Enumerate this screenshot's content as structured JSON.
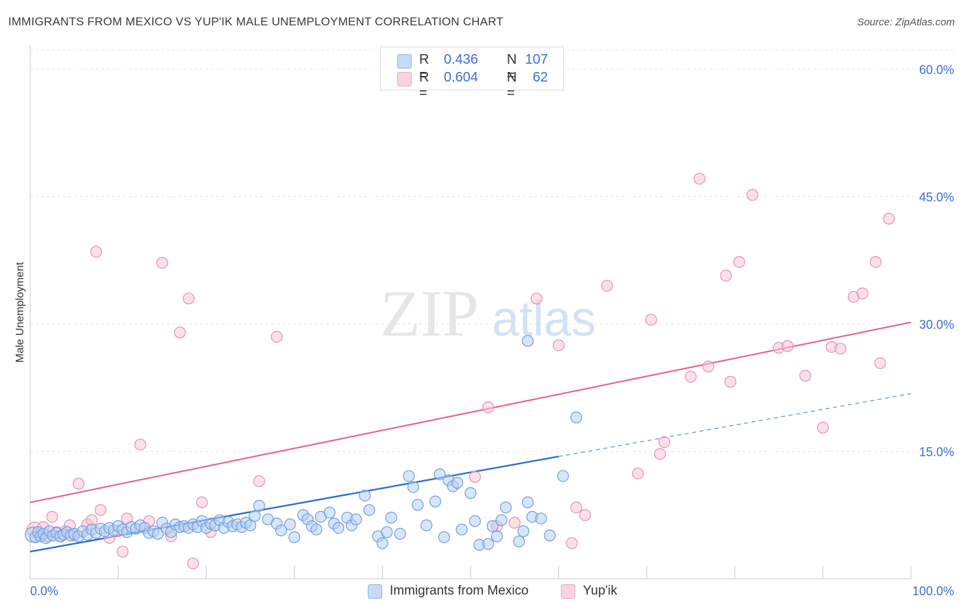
{
  "header": {
    "title": "IMMIGRANTS FROM MEXICO VS YUP'IK MALE UNEMPLOYMENT CORRELATION CHART",
    "source": "Source: ZipAtlas.com"
  },
  "watermark": {
    "text_zip": "ZIP",
    "text_atlas": "atlas"
  },
  "legend_top": {
    "rows": [
      {
        "r_label": "R =",
        "r_value": "0.436",
        "n_label": "N =",
        "n_value": "107",
        "color": "#a9c7f0"
      },
      {
        "r_label": "R =",
        "r_value": "0.604",
        "n_label": "N =",
        "n_value": "62",
        "color": "#f6b9cb"
      }
    ]
  },
  "legend_bottom": {
    "items": [
      {
        "label": "Immigrants from Mexico",
        "color": "#a9c7f0"
      },
      {
        "label": "Yup'ik",
        "color": "#f6b9cb"
      }
    ]
  },
  "chart_data": {
    "type": "scatter",
    "title": "IMMIGRANTS FROM MEXICO VS YUP'IK MALE UNEMPLOYMENT CORRELATION CHART",
    "xlabel": "",
    "ylabel": "Male Unemployment",
    "xlim": [
      0,
      100
    ],
    "ylim": [
      0,
      62.5
    ],
    "x_tick_labels": [
      {
        "value": 0,
        "label": "0.0%"
      },
      {
        "value": 100,
        "label": "100.0%"
      }
    ],
    "y_tick_labels": [
      {
        "value": 15,
        "label": "15.0%"
      },
      {
        "value": 30,
        "label": "30.0%"
      },
      {
        "value": 45,
        "label": "45.0%"
      },
      {
        "value": 60,
        "label": "60.0%"
      }
    ],
    "grid": true,
    "legend_position": "bottom",
    "series": [
      {
        "name": "Immigrants from Mexico",
        "color": "#4a85d6",
        "fill": "#a9c7f0",
        "R": 0.436,
        "N": 107,
        "trendline": {
          "x0": 0,
          "y0": 3.2,
          "x1": 60,
          "y1": 14.4,
          "dashed_to_x": 100,
          "dashed_to_y": 21.8
        },
        "points": [
          [
            0.3,
            5.2
          ],
          [
            0.6,
            4.9
          ],
          [
            0.9,
            5.5
          ],
          [
            1.2,
            5.0
          ],
          [
            1.5,
            5.3
          ],
          [
            1.8,
            4.8
          ],
          [
            2.2,
            5.6
          ],
          [
            2.6,
            5.1
          ],
          [
            3.0,
            5.4
          ],
          [
            3.4,
            5.0
          ],
          [
            3.8,
            5.2
          ],
          [
            4.2,
            5.5
          ],
          [
            4.6,
            5.1
          ],
          [
            5.0,
            5.3
          ],
          [
            5.5,
            5.0
          ],
          [
            6.0,
            5.6
          ],
          [
            6.5,
            5.2
          ],
          [
            7.0,
            5.8
          ],
          [
            7.5,
            5.4
          ],
          [
            8.0,
            5.9
          ],
          [
            8.5,
            5.6
          ],
          [
            9.0,
            6.0
          ],
          [
            9.5,
            5.7
          ],
          [
            10.0,
            6.2
          ],
          [
            10.5,
            5.8
          ],
          [
            11.0,
            5.5
          ],
          [
            11.5,
            6.1
          ],
          [
            12.0,
            5.9
          ],
          [
            12.5,
            6.3
          ],
          [
            13.0,
            6.0
          ],
          [
            13.5,
            5.4
          ],
          [
            14.0,
            5.6
          ],
          [
            14.5,
            5.3
          ],
          [
            15.0,
            6.6
          ],
          [
            15.5,
            5.9
          ],
          [
            16.0,
            5.5
          ],
          [
            16.5,
            6.4
          ],
          [
            17.0,
            6.1
          ],
          [
            17.5,
            6.2
          ],
          [
            18.0,
            6.0
          ],
          [
            18.5,
            6.4
          ],
          [
            19.0,
            6.1
          ],
          [
            19.5,
            6.8
          ],
          [
            20.0,
            6.0
          ],
          [
            20.5,
            6.5
          ],
          [
            21.0,
            6.3
          ],
          [
            21.5,
            6.9
          ],
          [
            22.0,
            6.0
          ],
          [
            22.5,
            6.7
          ],
          [
            23.0,
            6.2
          ],
          [
            23.5,
            6.4
          ],
          [
            24.0,
            6.1
          ],
          [
            24.5,
            6.6
          ],
          [
            25.0,
            6.3
          ],
          [
            25.5,
            7.4
          ],
          [
            26.0,
            8.6
          ],
          [
            27.0,
            7.0
          ],
          [
            28.0,
            6.5
          ],
          [
            28.5,
            5.7
          ],
          [
            29.5,
            6.4
          ],
          [
            30.0,
            4.9
          ],
          [
            31.0,
            7.5
          ],
          [
            31.5,
            7.0
          ],
          [
            32.0,
            6.2
          ],
          [
            32.5,
            5.8
          ],
          [
            33.0,
            7.3
          ],
          [
            34.0,
            7.8
          ],
          [
            34.5,
            6.5
          ],
          [
            35.0,
            6.0
          ],
          [
            36.0,
            7.2
          ],
          [
            36.5,
            6.3
          ],
          [
            37.0,
            7.0
          ],
          [
            38.0,
            9.8
          ],
          [
            38.5,
            8.1
          ],
          [
            39.5,
            5.0
          ],
          [
            40.0,
            4.2
          ],
          [
            40.5,
            5.5
          ],
          [
            41.0,
            7.2
          ],
          [
            42.0,
            5.3
          ],
          [
            43.0,
            12.1
          ],
          [
            43.5,
            10.8
          ],
          [
            44.0,
            8.7
          ],
          [
            45.0,
            6.3
          ],
          [
            46.0,
            9.1
          ],
          [
            46.5,
            12.3
          ],
          [
            47.0,
            4.9
          ],
          [
            47.5,
            11.6
          ],
          [
            48.0,
            10.9
          ],
          [
            48.5,
            11.3
          ],
          [
            49.0,
            5.8
          ],
          [
            50.0,
            10.1
          ],
          [
            50.5,
            6.8
          ],
          [
            51.0,
            4.0
          ],
          [
            52.0,
            4.1
          ],
          [
            52.5,
            6.2
          ],
          [
            53.0,
            5.0
          ],
          [
            53.5,
            6.9
          ],
          [
            54.0,
            8.4
          ],
          [
            55.5,
            4.4
          ],
          [
            56.0,
            5.6
          ],
          [
            56.5,
            9.0
          ],
          [
            57.0,
            7.3
          ],
          [
            58.0,
            7.1
          ],
          [
            59.0,
            5.1
          ],
          [
            60.5,
            12.1
          ],
          [
            62.0,
            19.0
          ],
          [
            56.5,
            28.0
          ]
        ]
      },
      {
        "name": "Yup'ik",
        "color": "#e36891",
        "fill": "#f6b9cb",
        "R": 0.604,
        "N": 62,
        "trendline": {
          "x0": 0,
          "y0": 9.0,
          "x1": 100,
          "y1": 30.2
        },
        "points": [
          [
            0.5,
            5.8
          ],
          [
            1.0,
            5.2
          ],
          [
            1.5,
            6.1
          ],
          [
            2.0,
            5.0
          ],
          [
            2.5,
            7.3
          ],
          [
            3.0,
            5.5
          ],
          [
            3.5,
            5.0
          ],
          [
            4.0,
            5.6
          ],
          [
            4.5,
            6.3
          ],
          [
            5.0,
            5.1
          ],
          [
            5.5,
            11.2
          ],
          [
            6.5,
            6.4
          ],
          [
            7.0,
            6.9
          ],
          [
            8.0,
            8.1
          ],
          [
            9.0,
            4.8
          ],
          [
            10.0,
            5.6
          ],
          [
            10.5,
            3.2
          ],
          [
            11.0,
            7.1
          ],
          [
            12.5,
            15.8
          ],
          [
            13.5,
            6.8
          ],
          [
            7.5,
            38.5
          ],
          [
            15.0,
            37.2
          ],
          [
            16.0,
            5.0
          ],
          [
            17.0,
            29.0
          ],
          [
            18.0,
            33.0
          ],
          [
            18.5,
            1.8
          ],
          [
            19.5,
            9.0
          ],
          [
            20.5,
            5.5
          ],
          [
            26.0,
            11.5
          ],
          [
            28.0,
            28.5
          ],
          [
            50.5,
            12.0
          ],
          [
            52.0,
            20.2
          ],
          [
            53.0,
            6.2
          ],
          [
            55.0,
            6.6
          ],
          [
            57.5,
            33.0
          ],
          [
            60.0,
            27.5
          ],
          [
            61.5,
            4.2
          ],
          [
            62.0,
            8.4
          ],
          [
            63.0,
            7.5
          ],
          [
            65.5,
            34.5
          ],
          [
            69.0,
            12.4
          ],
          [
            70.5,
            30.5
          ],
          [
            71.5,
            14.7
          ],
          [
            72.0,
            16.1
          ],
          [
            75.0,
            23.8
          ],
          [
            76.0,
            47.1
          ],
          [
            77.0,
            25.0
          ],
          [
            79.0,
            35.7
          ],
          [
            79.5,
            23.2
          ],
          [
            80.5,
            37.3
          ],
          [
            82.0,
            45.2
          ],
          [
            85.0,
            27.2
          ],
          [
            86.0,
            27.4
          ],
          [
            88.0,
            23.9
          ],
          [
            90.0,
            17.8
          ],
          [
            91.0,
            27.3
          ],
          [
            92.0,
            27.1
          ],
          [
            93.5,
            33.2
          ],
          [
            94.5,
            33.6
          ],
          [
            96.0,
            37.3
          ],
          [
            96.5,
            25.4
          ],
          [
            97.5,
            42.4
          ]
        ]
      }
    ]
  }
}
